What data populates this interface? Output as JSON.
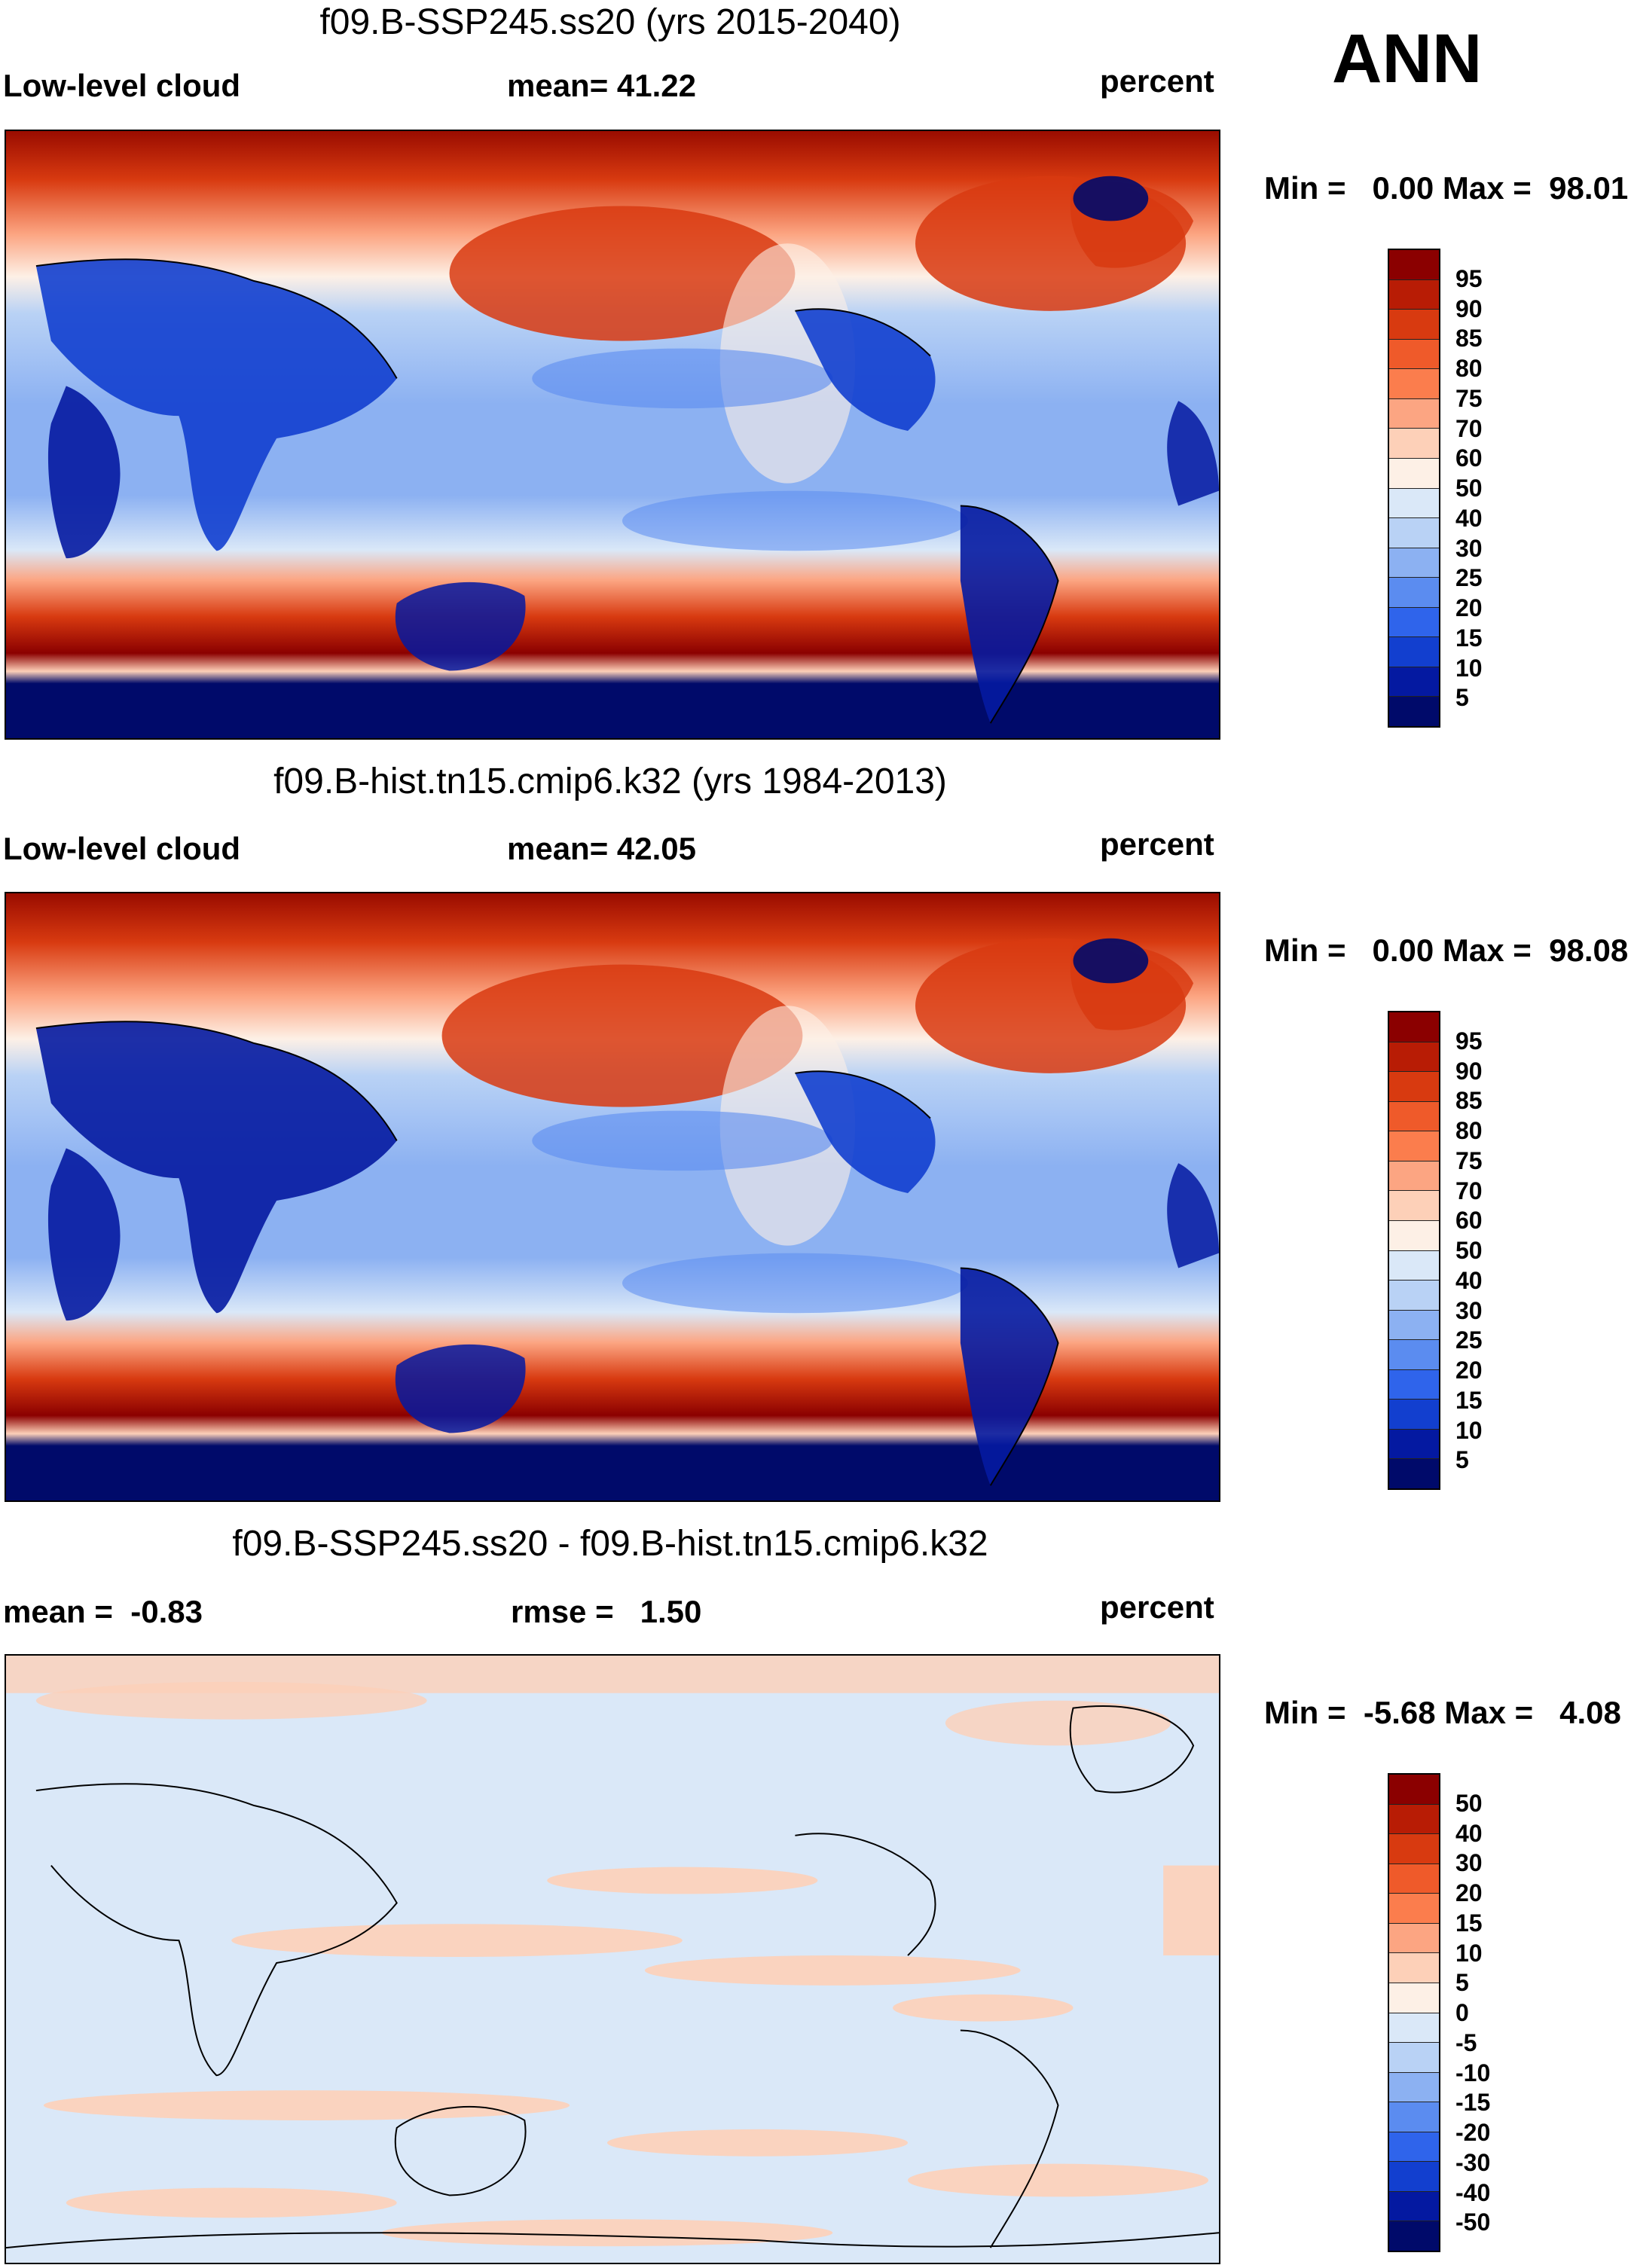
{
  "season": "ANN",
  "unit_label": "percent",
  "panels": [
    {
      "title": "f09.B-SSP245.ss20 (yrs 2015-2040)",
      "left_label": "Low-level cloud",
      "mid_label": "mean=  41.22",
      "right_label": "percent",
      "minmax_label": "Min =   0.00 Max =  98.01",
      "colorbar_levels": [
        "95",
        "90",
        "85",
        "80",
        "75",
        "70",
        "60",
        "50",
        "40",
        "30",
        "25",
        "20",
        "15",
        "10",
        "5"
      ],
      "colorbar_colors": [
        "#8b0000",
        "#b81c05",
        "#d83a10",
        "#ef5a2a",
        "#fb7d4d",
        "#fca582",
        "#fdd0b8",
        "#fdf0e6",
        "#dae8f8",
        "#b9d2f5",
        "#8cb1f2",
        "#5b8cf0",
        "#2f64eb",
        "#123fcf",
        "#0419a1",
        "#000a6a"
      ],
      "min": 0.0,
      "max": 98.01,
      "mean": 41.22
    },
    {
      "title": "f09.B-hist.tn15.cmip6.k32 (yrs 1984-2013)",
      "left_label": "Low-level cloud",
      "mid_label": "mean=  42.05",
      "right_label": "percent",
      "minmax_label": "Min =   0.00 Max =  98.08",
      "colorbar_levels": [
        "95",
        "90",
        "85",
        "80",
        "75",
        "70",
        "60",
        "50",
        "40",
        "30",
        "25",
        "20",
        "15",
        "10",
        "5"
      ],
      "colorbar_colors": [
        "#8b0000",
        "#b81c05",
        "#d83a10",
        "#ef5a2a",
        "#fb7d4d",
        "#fca582",
        "#fdd0b8",
        "#fdf0e6",
        "#dae8f8",
        "#b9d2f5",
        "#8cb1f2",
        "#5b8cf0",
        "#2f64eb",
        "#123fcf",
        "#0419a1",
        "#000a6a"
      ],
      "min": 0.0,
      "max": 98.08,
      "mean": 42.05
    },
    {
      "title": "f09.B-SSP245.ss20 - f09.B-hist.tn15.cmip6.k32",
      "left_label": "mean =  -0.83",
      "mid_label": "rmse =   1.50",
      "right_label": "percent",
      "minmax_label": "Min =  -5.68 Max =   4.08",
      "colorbar_levels": [
        "50",
        "40",
        "30",
        "20",
        "15",
        "10",
        "5",
        "0",
        "-5",
        "-10",
        "-15",
        "-20",
        "-30",
        "-40",
        "-50"
      ],
      "colorbar_colors": [
        "#8b0000",
        "#b81c05",
        "#d83a10",
        "#ef5a2a",
        "#fb7d4d",
        "#fca582",
        "#fdd0b8",
        "#fdf0e6",
        "#dae8f8",
        "#b9d2f5",
        "#8cb1f2",
        "#5b8cf0",
        "#2f64eb",
        "#123fcf",
        "#0419a1",
        "#000a6a"
      ],
      "min": -5.68,
      "max": 4.08,
      "mean": -0.83,
      "rmse": 1.5
    }
  ],
  "palette": {
    "deep_red": "#8b0000",
    "red": "#d83a10",
    "orange": "#fb7d4d",
    "light_orange": "#fdd0b8",
    "cream": "#fdf0e6",
    "light_blue": "#dae8f8",
    "mid_blue": "#8cb1f2",
    "blue": "#2f64eb",
    "navy": "#000a6a"
  }
}
